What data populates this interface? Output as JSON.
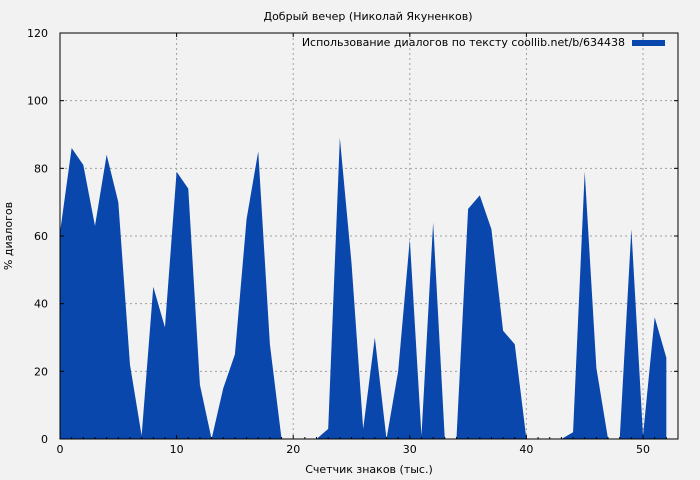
{
  "chart_data": {
    "type": "area",
    "title": "Добрый вечер (Николай Якуненков)",
    "xlabel": "Счетчик знаков (тыс.)",
    "ylabel": "% диалогов",
    "xlim": [
      0,
      53
    ],
    "ylim": [
      0,
      120
    ],
    "xticks": [
      0,
      10,
      20,
      30,
      40,
      50
    ],
    "yticks": [
      0,
      20,
      40,
      60,
      80,
      100,
      120
    ],
    "grid": true,
    "legend_position": "top-right",
    "series": [
      {
        "name": "Использование диалогов по тексту coollib.net/b/634438",
        "color": "#0a47ad",
        "x": [
          0,
          1,
          2,
          3,
          4,
          5,
          6,
          7,
          8,
          9,
          10,
          11,
          12,
          13,
          14,
          15,
          16,
          17,
          18,
          19,
          20,
          21,
          22,
          23,
          24,
          25,
          26,
          27,
          28,
          29,
          30,
          31,
          32,
          33,
          34,
          35,
          36,
          37,
          38,
          39,
          40,
          41,
          42,
          43,
          44,
          45,
          46,
          47,
          48,
          49,
          50,
          51,
          52
        ],
        "values": [
          61,
          86,
          81,
          63,
          84,
          70,
          22,
          1,
          45,
          33,
          79,
          74,
          16,
          0,
          15,
          25,
          65,
          85,
          28,
          0,
          0,
          0,
          0,
          3,
          89,
          52,
          3,
          30,
          0,
          20,
          59,
          1,
          64,
          0,
          0,
          68,
          72,
          62,
          32,
          28,
          0,
          0,
          0,
          0,
          2,
          79,
          21,
          0,
          0,
          62,
          1,
          36,
          24
        ]
      }
    ]
  }
}
